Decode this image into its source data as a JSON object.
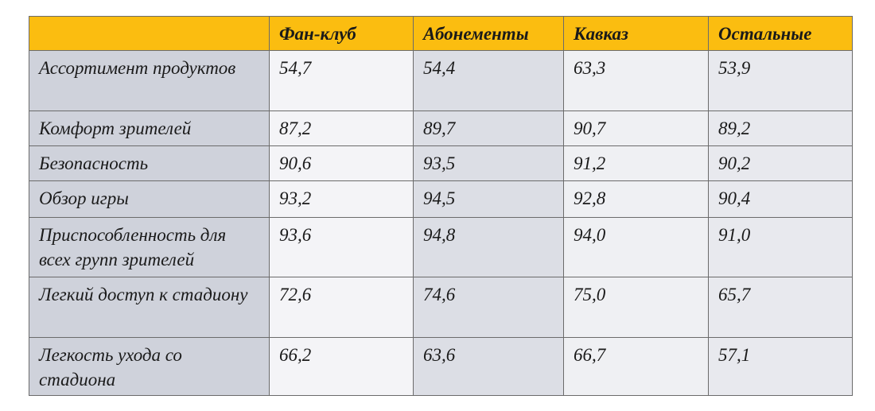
{
  "table": {
    "columns": [
      "Фан-клуб",
      "Абонементы",
      "Кавказ",
      "Остальные"
    ],
    "rows": [
      [
        "Ассортимент продуктов",
        "54,7",
        "54,4",
        "63,3",
        "53,9"
      ],
      [
        "Комфорт зрителей",
        "87,2",
        "89,7",
        "90,7",
        "89,2"
      ],
      [
        "Безопасность",
        "90,6",
        "93,5",
        "91,2",
        "90,2"
      ],
      [
        "Обзор игры",
        "93,2",
        "94,5",
        "92,8",
        "90,4"
      ],
      [
        "Приспособленность для всех групп зрителей",
        "93,6",
        "94,8",
        "94,0",
        "91,0"
      ],
      [
        "Легкий доступ к стадиону",
        "72,6",
        "74,6",
        "75,0",
        "65,7"
      ],
      [
        "Легкость ухода со стадиона",
        "66,2",
        "63,6",
        "66,7",
        "57,1"
      ]
    ]
  }
}
